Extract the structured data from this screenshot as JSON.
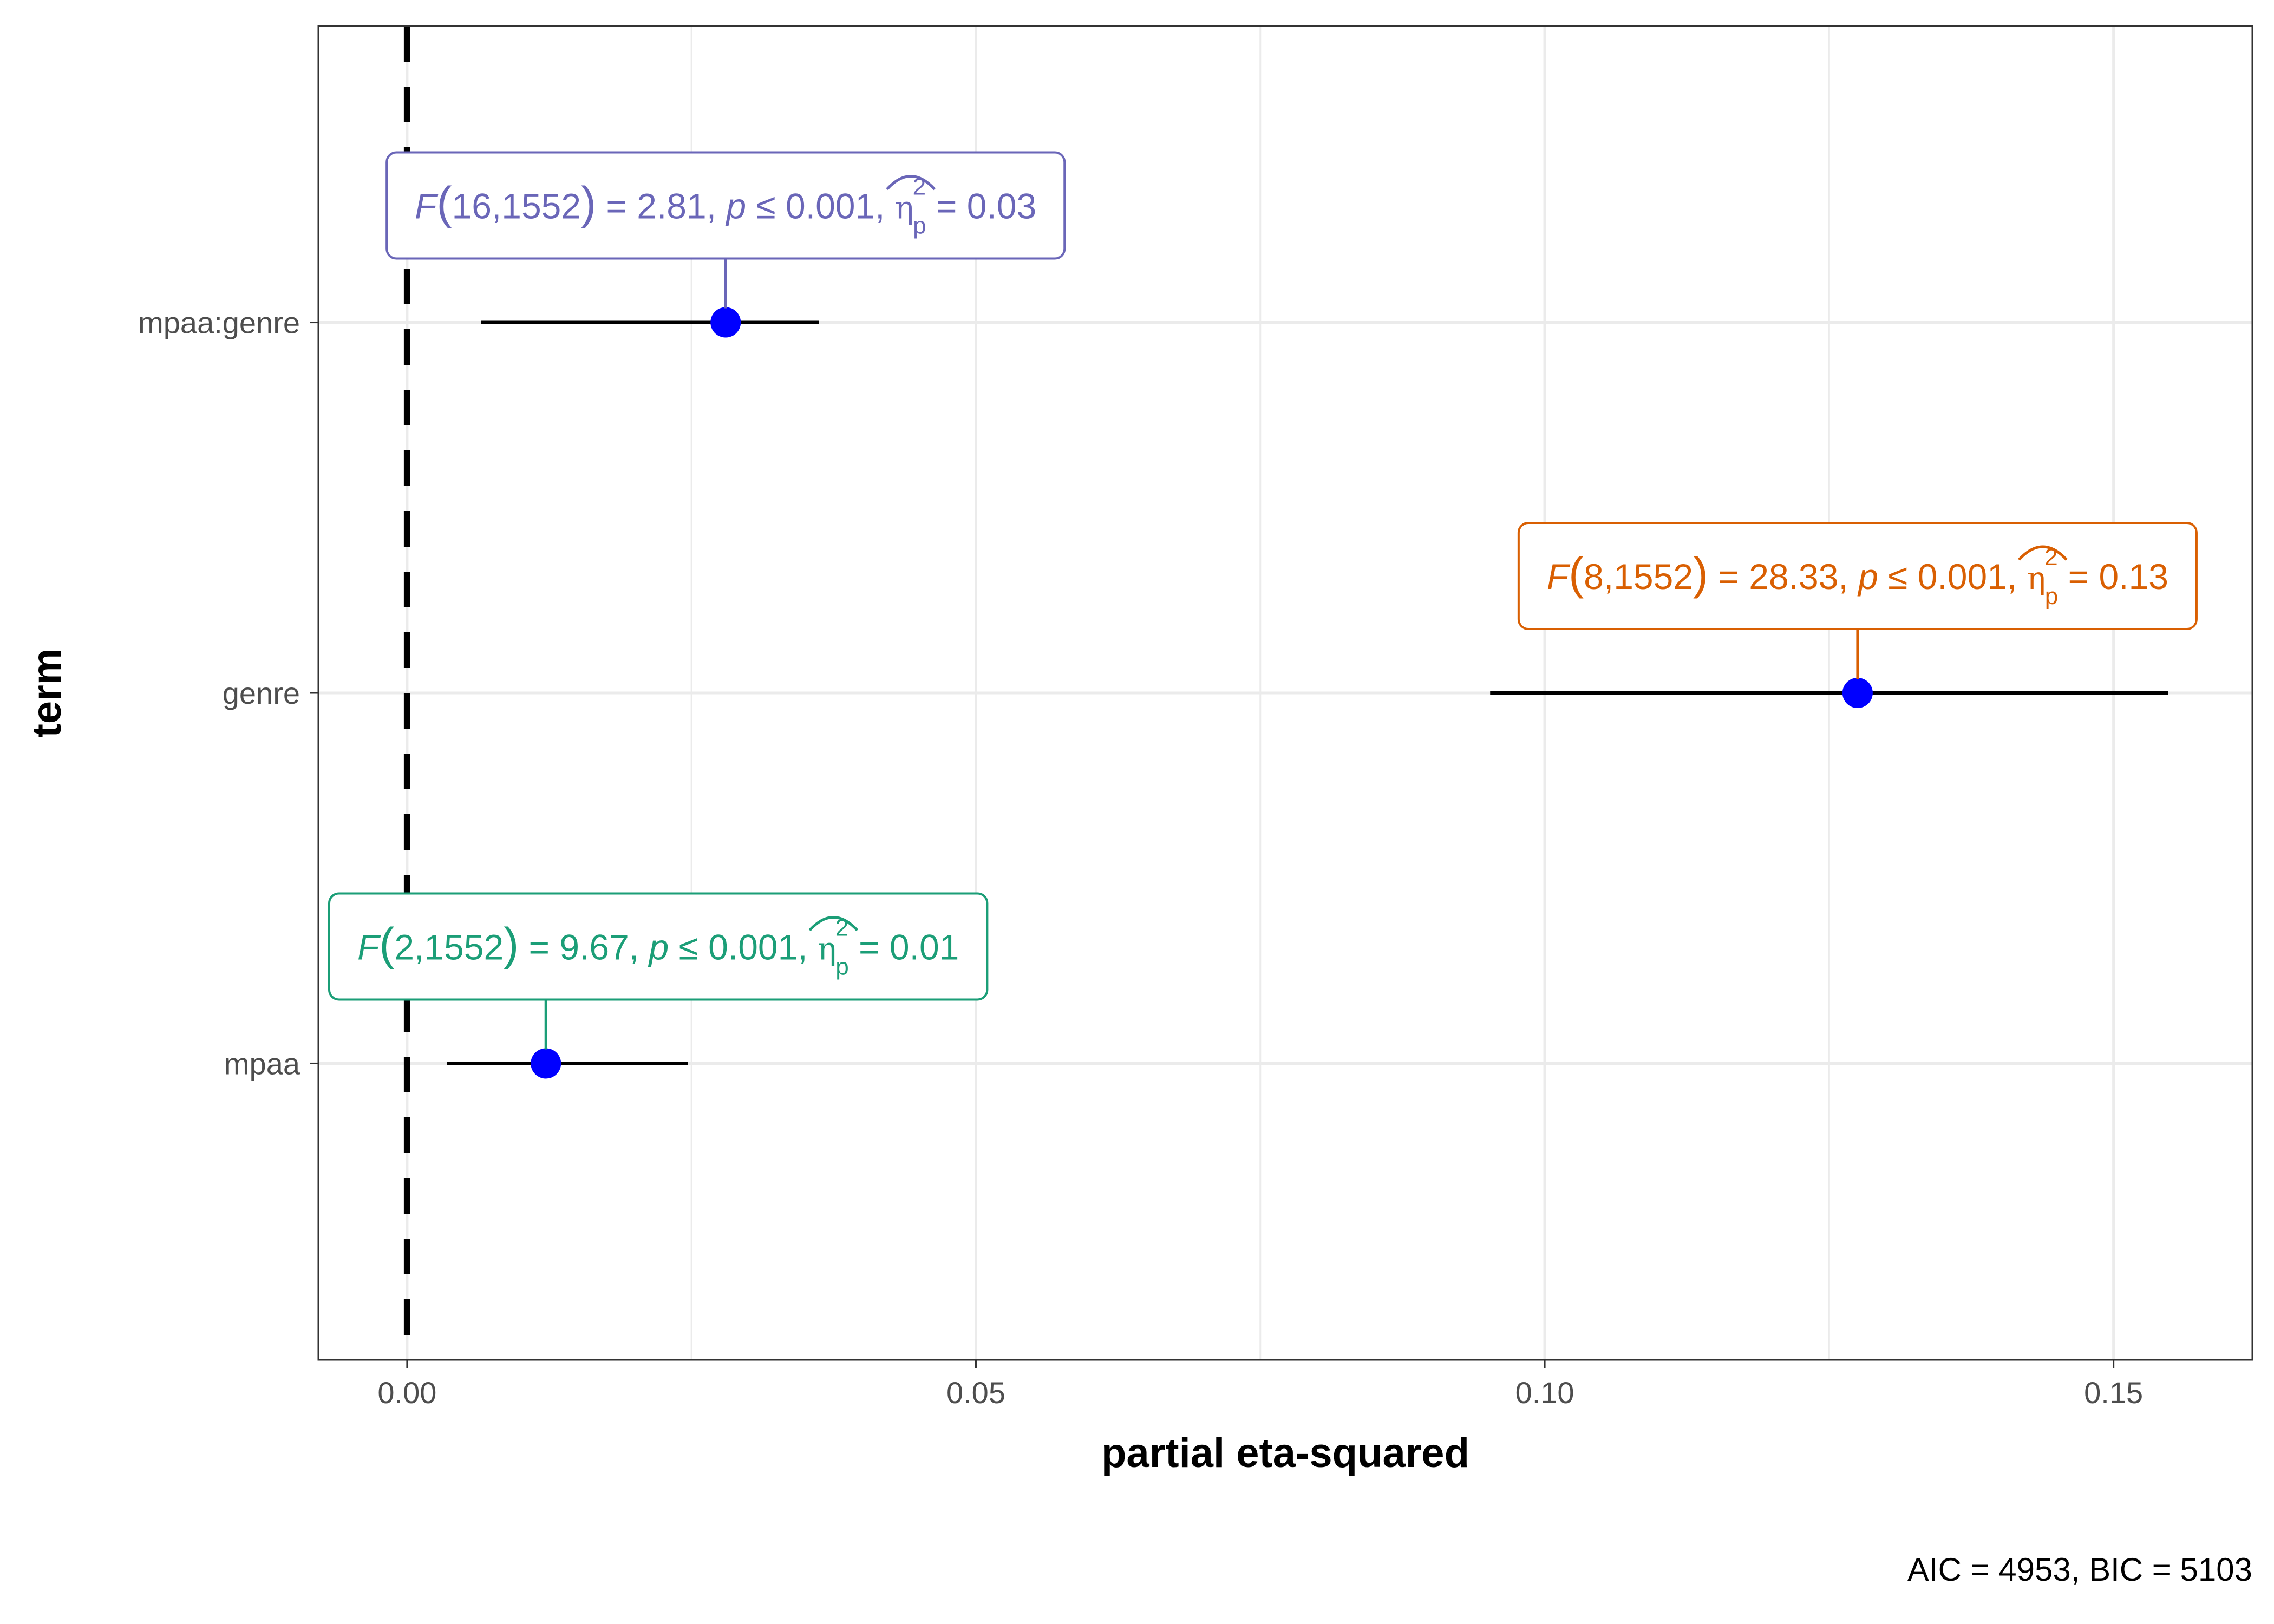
{
  "chart_data": {
    "type": "dot-whisker",
    "xlabel": "partial eta-squared",
    "ylabel": "term",
    "caption": "AIC = 4953, BIC = 5103",
    "xlim": [
      -0.0078,
      0.1622
    ],
    "x_ticks": [
      0.0,
      0.05,
      0.1,
      0.15
    ],
    "x_tick_labels": [
      "0.00",
      "0.05",
      "0.10",
      "0.15"
    ],
    "y_categories": [
      "mpaa",
      "genre",
      "mpaa:genre"
    ],
    "reference_line": {
      "x": 0,
      "style": "dashed"
    },
    "point_color": "#0000ff",
    "points": [
      {
        "term": "mpaa:genre",
        "estimate": 0.028,
        "conf_low": 0.0065,
        "conf_high": 0.0362,
        "color": "#6a66b8",
        "label": {
          "F": "F",
          "df": "16,1552",
          "stat": "= 2.81",
          "p": "p",
          "p_val": "≤ 0.001",
          "eta": "η",
          "sup": "2",
          "sub": "p",
          "eta_val": "= 0.03"
        }
      },
      {
        "term": "genre",
        "estimate": 0.1275,
        "conf_low": 0.0952,
        "conf_high": 0.1548,
        "color": "#d95f02",
        "label": {
          "F": "F",
          "df": "8,1552",
          "stat": "= 28.33",
          "p": "p",
          "p_val": "≤ 0.001",
          "eta": "η",
          "sup": "2",
          "sub": "p",
          "eta_val": "= 0.13"
        }
      },
      {
        "term": "mpaa",
        "estimate": 0.0122,
        "conf_low": 0.0035,
        "conf_high": 0.0247,
        "color": "#1b9e77",
        "label": {
          "F": "F",
          "df": "2,1552",
          "stat": "= 9.67",
          "p": "p",
          "p_val": "≤ 0.001",
          "eta": "η",
          "sup": "2",
          "sub": "p",
          "eta_val": "= 0.01"
        }
      }
    ]
  }
}
